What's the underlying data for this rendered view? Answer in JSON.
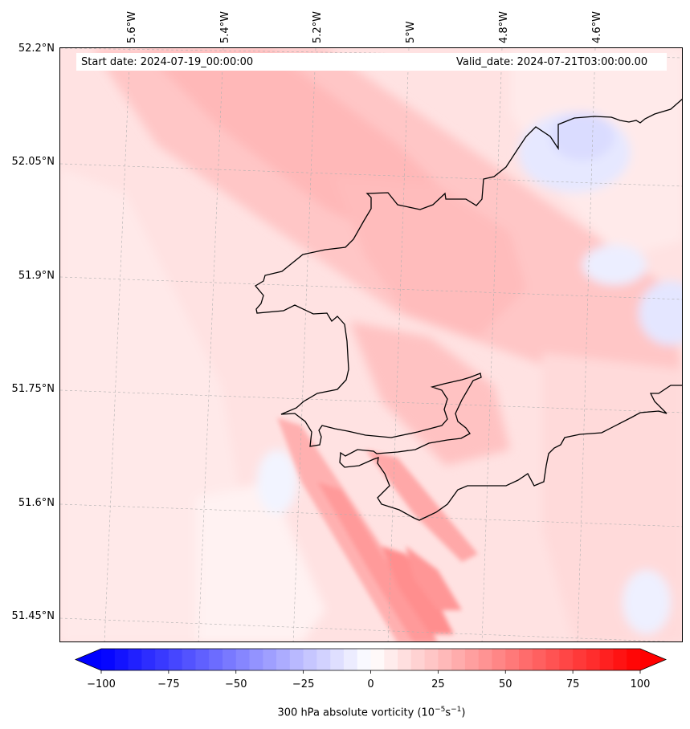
{
  "header": {
    "start_date": "Start date: 2024-07-19_00:00:00",
    "valid_date": "Valid_date: 2024-07-21T03:00:00.00"
  },
  "axes": {
    "lat_labels": [
      "52.2°N",
      "52.05°N",
      "51.9°N",
      "51.75°N",
      "51.6°N",
      "51.45°N"
    ],
    "lon_labels": [
      "5.6°W",
      "5.4°W",
      "5.2°W",
      "5°W",
      "4.8°W",
      "4.6°W"
    ]
  },
  "colorbar": {
    "ticks": [
      "−100",
      "−75",
      "−50",
      "−25",
      "0",
      "25",
      "50",
      "75",
      "100"
    ],
    "title_main": "300 hPa absolute vorticity (10",
    "title_sup1": "−5",
    "title_mid": "s",
    "title_sup2": "−1",
    "title_end": ")",
    "range": [
      -100,
      100
    ],
    "colormap": "bwr"
  },
  "colors": {
    "coast": "#000000",
    "grid": "#b0b0b0",
    "positive": "#ff0000",
    "negative": "#0000ff"
  }
}
